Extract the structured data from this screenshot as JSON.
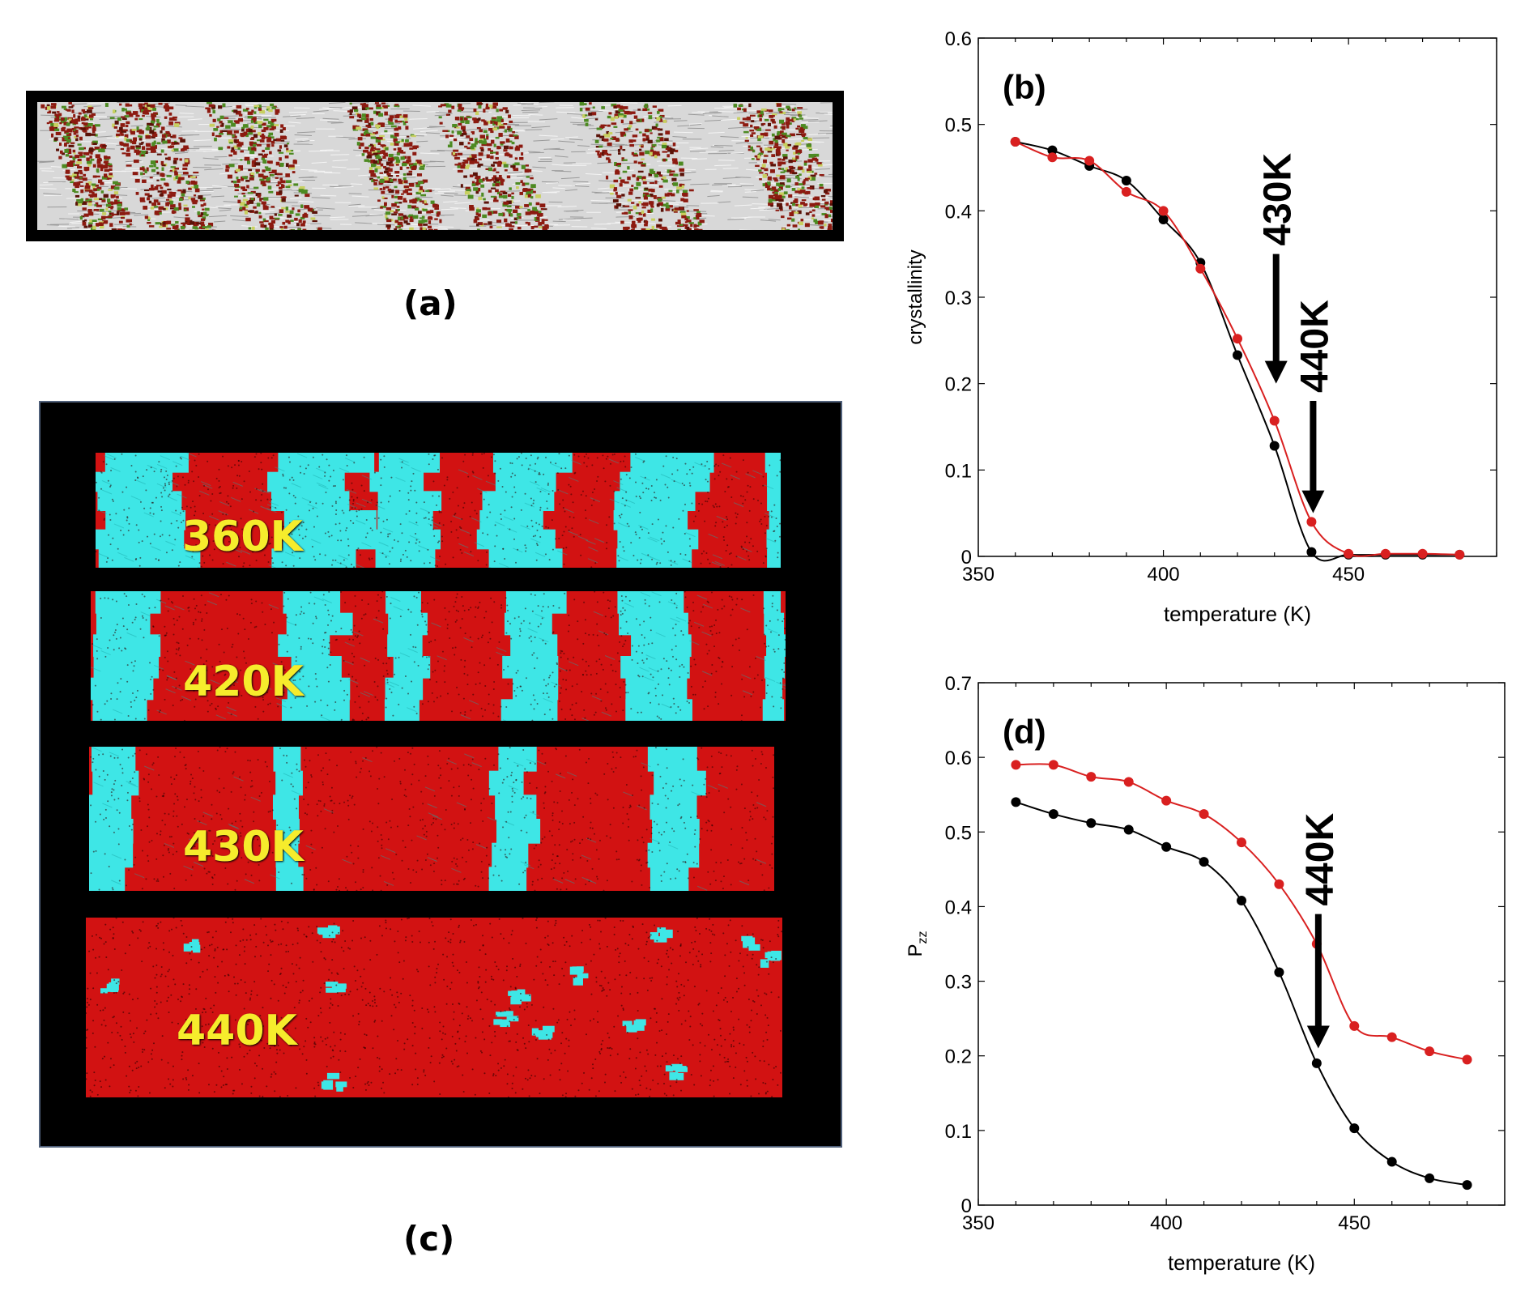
{
  "figure": {
    "panel_a_label": "(a)",
    "panel_c_label": "(c)",
    "snapshots": [
      {
        "label": "360K"
      },
      {
        "label": "420K"
      },
      {
        "label": "430K"
      },
      {
        "label": "440K"
      }
    ],
    "colors": {
      "crystalline": "#3ee6e6",
      "amorphous": "#e01010",
      "series_black": "#000000",
      "series_red": "#d92020",
      "label_yellow": "#f6ec2c"
    }
  },
  "chart_data": [
    {
      "id": "b",
      "type": "line",
      "panel_label": "(b)",
      "xlabel": "temperature  (K)",
      "ylabel": "crystallinity",
      "xlim": [
        350,
        490
      ],
      "ylim": [
        0,
        0.6
      ],
      "xticks": [
        350,
        400,
        450
      ],
      "yticks": [
        0,
        0.1,
        0.2,
        0.3,
        0.4,
        0.5,
        0.6
      ],
      "ytick_labels": [
        "0",
        "0.1",
        "0.2",
        "0.3",
        "0.4",
        "0.5",
        "0.6"
      ],
      "xtick_labels": [
        "350",
        "400",
        "450"
      ],
      "series": [
        {
          "name": "black",
          "color": "#000000",
          "x": [
            360,
            370,
            380,
            390,
            400,
            410,
            420,
            430,
            440,
            450,
            460,
            470,
            480
          ],
          "y": [
            0.48,
            0.47,
            0.452,
            0.435,
            0.39,
            0.34,
            0.233,
            0.128,
            0.005,
            0.002,
            0.002,
            0.002,
            0.002
          ]
        },
        {
          "name": "red",
          "color": "#d92020",
          "x": [
            360,
            370,
            380,
            390,
            400,
            410,
            420,
            430,
            440,
            450,
            460,
            470,
            480
          ],
          "y": [
            0.48,
            0.462,
            0.458,
            0.422,
            0.4,
            0.333,
            0.252,
            0.157,
            0.04,
            0.003,
            0.003,
            0.003,
            0.002
          ]
        }
      ],
      "annotations": [
        {
          "text": "430K",
          "x": 430,
          "arrow_from": 0.35,
          "arrow_to": 0.2
        },
        {
          "text": "440K",
          "x": 440,
          "arrow_from": 0.18,
          "arrow_to": 0.05
        }
      ]
    },
    {
      "id": "d",
      "type": "line",
      "panel_label": "(d)",
      "xlabel": "temperature  (K)",
      "ylabel": "P",
      "ylabel_sub": "zz",
      "xlim": [
        350,
        490
      ],
      "ylim": [
        0,
        0.7
      ],
      "xticks": [
        350,
        400,
        450
      ],
      "yticks": [
        0,
        0.1,
        0.2,
        0.3,
        0.4,
        0.5,
        0.6,
        0.7
      ],
      "ytick_labels": [
        "0",
        "0.1",
        "0.2",
        "0.3",
        "0.4",
        "0.5",
        "0.6",
        "0.7"
      ],
      "xtick_labels": [
        "350",
        "400",
        "450"
      ],
      "series": [
        {
          "name": "black",
          "color": "#000000",
          "x": [
            360,
            370,
            380,
            390,
            400,
            410,
            420,
            430,
            440,
            450,
            460,
            470,
            480
          ],
          "y": [
            0.54,
            0.524,
            0.512,
            0.503,
            0.48,
            0.46,
            0.408,
            0.312,
            0.19,
            0.103,
            0.058,
            0.036,
            0.027
          ]
        },
        {
          "name": "red",
          "color": "#d92020",
          "x": [
            360,
            370,
            380,
            390,
            400,
            410,
            420,
            430,
            440,
            450,
            460,
            470,
            480
          ],
          "y": [
            0.59,
            0.59,
            0.574,
            0.567,
            0.542,
            0.524,
            0.486,
            0.43,
            0.35,
            0.24,
            0.225,
            0.206,
            0.195
          ]
        }
      ],
      "annotations": [
        {
          "text": "440K",
          "x": 440,
          "arrow_from": 0.39,
          "arrow_to": 0.21
        }
      ]
    }
  ]
}
